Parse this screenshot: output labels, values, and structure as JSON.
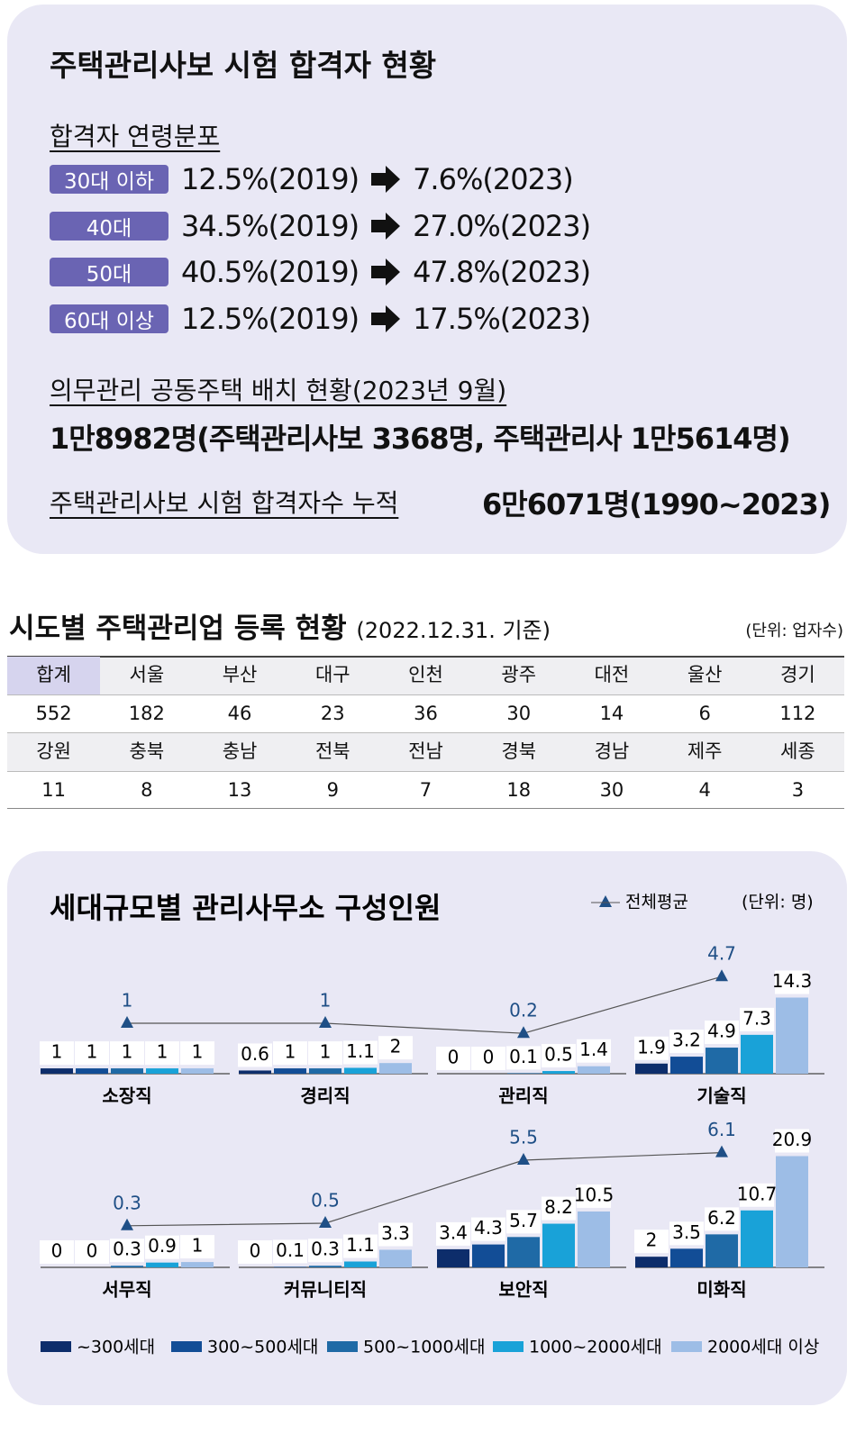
{
  "panel": {
    "title": "주택관리사보 시험 합격자 현황",
    "age_dist": {
      "heading": "합격자 연령분포",
      "rows": [
        {
          "group": "30대 이하",
          "before": "12.5%(2019)",
          "after": "7.6%(2023)"
        },
        {
          "group": "40대",
          "before": "34.5%(2019)",
          "after": "27.0%(2023)"
        },
        {
          "group": "50대",
          "before": "40.5%(2019)",
          "after": "47.8%(2023)"
        },
        {
          "group": "60대 이상",
          "before": "12.5%(2019)",
          "after": "17.5%(2023)"
        }
      ]
    },
    "placement": {
      "heading": "의무관리 공동주택 배치 현황(2023년 9월)",
      "text": "1만8982명(주택관리사보 3368명, 주택관리사 1만5614명)"
    },
    "cumulative": {
      "heading": "주택관리사보 시험 합격자수 누적",
      "text": "6만6071명(1990~2023)"
    }
  },
  "table": {
    "title": "시도별 주택관리업 등록 현황",
    "note": "(2022.12.31. 기준)",
    "unit": "(단위: 업자수)",
    "rows": [
      [
        "합계",
        "서울",
        "부산",
        "대구",
        "인천",
        "광주",
        "대전",
        "울산",
        "경기"
      ],
      [
        552,
        182,
        46,
        23,
        36,
        30,
        14,
        6,
        112
      ],
      [
        "강원",
        "충북",
        "충남",
        "전북",
        "전남",
        "경북",
        "경남",
        "제주",
        "세종"
      ],
      [
        11,
        8,
        13,
        9,
        7,
        18,
        30,
        4,
        3
      ]
    ]
  },
  "chart_data": {
    "type": "bar",
    "title": "세대규모별 관리사무소 구성인원",
    "unit": "(단위: 명)",
    "categories": [
      "소장직",
      "경리직",
      "관리직",
      "기술직",
      "서무직",
      "커뮤니티직",
      "보안직",
      "미화직"
    ],
    "ylim": [
      0,
      22
    ],
    "y2lim": [
      -3,
      7
    ],
    "series": [
      {
        "name": "~300세대",
        "color": "#0d2d6b",
        "values": [
          1,
          0.6,
          0,
          1.9,
          0,
          0,
          3.4,
          2
        ]
      },
      {
        "name": "300~500세대",
        "color": "#124d96",
        "values": [
          1,
          1,
          0,
          3.2,
          0,
          0.1,
          4.3,
          3.5
        ]
      },
      {
        "name": "500~1000세대",
        "color": "#1f6aa6",
        "values": [
          1,
          1,
          0.1,
          4.9,
          0.3,
          0.3,
          5.7,
          6.2
        ]
      },
      {
        "name": "1000~2000세대",
        "color": "#19a2d8",
        "values": [
          1,
          1.1,
          0.5,
          7.3,
          0.9,
          1.1,
          8.2,
          10.7
        ]
      },
      {
        "name": "2000세대 이상",
        "color": "#9dbde6",
        "values": [
          1,
          2,
          1.4,
          14.3,
          1,
          3.3,
          10.5,
          20.9
        ]
      },
      {
        "name": "전체평균",
        "color": "#1f4f86",
        "axis": "y2",
        "values": [
          1,
          1,
          0.2,
          4.7,
          0.3,
          0.5,
          5.5,
          6.1
        ]
      }
    ]
  }
}
